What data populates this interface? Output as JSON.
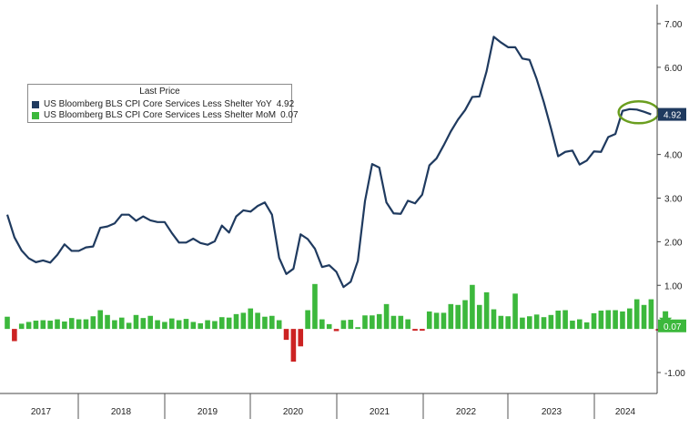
{
  "legend": {
    "header": "Last Price",
    "items": [
      {
        "label": "US Bloomberg BLS CPI Core Services Less Shelter YoY",
        "value": "4.92",
        "color": "#1f3a5f"
      },
      {
        "label": "US Bloomberg BLS CPI Core Services Less Shelter MoM",
        "value": "0.07",
        "color": "#3cb83c"
      }
    ]
  },
  "chart_data": {
    "type": "line",
    "grid": false,
    "legend_placement": "top-left",
    "ylim": [
      -1.25,
      7.4
    ],
    "y_ticks": [
      {
        "value": 7,
        "label": "7.00"
      },
      {
        "value": 6,
        "label": "6.00"
      },
      {
        "value": 5,
        "label": "5.00"
      },
      {
        "value": 4,
        "label": "4.00"
      },
      {
        "value": 3,
        "label": "3.00"
      },
      {
        "value": 2,
        "label": "2.00"
      },
      {
        "value": 1,
        "label": "1.00"
      },
      {
        "value": -1,
        "label": "-1.00"
      }
    ],
    "x_labels": [
      "2017",
      "2018",
      "2019",
      "2020",
      "2021",
      "2022",
      "2023",
      "2024"
    ],
    "last_value_labels": [
      {
        "series": 0,
        "value": 4.92,
        "label": "4.92",
        "color": "#1f3a5f"
      },
      {
        "series": 1,
        "value": 0.07,
        "label": "0.07",
        "color": "#3cb83c"
      }
    ],
    "series": [
      {
        "name": "US Bloomberg BLS CPI Core Services Less Shelter YoY",
        "type": "line",
        "color": "#1f3a5f",
        "values": [
          2.62,
          2.1,
          1.8,
          1.62,
          1.53,
          1.57,
          1.52,
          1.7,
          1.94,
          1.79,
          1.79,
          1.87,
          1.89,
          2.32,
          2.35,
          2.42,
          2.62,
          2.62,
          2.48,
          2.58,
          2.49,
          2.45,
          2.45,
          2.2,
          1.98,
          1.98,
          2.07,
          1.97,
          1.93,
          2.01,
          2.37,
          2.21,
          2.58,
          2.72,
          2.69,
          2.82,
          2.9,
          2.62,
          1.63,
          1.26,
          1.38,
          2.17,
          2.06,
          1.84,
          1.42,
          1.46,
          1.31,
          0.96,
          1.08,
          1.56,
          2.93,
          3.78,
          3.7,
          2.9,
          2.65,
          2.64,
          2.94,
          2.88,
          3.08,
          3.75,
          3.91,
          4.21,
          4.53,
          4.8,
          5.02,
          5.32,
          5.33,
          5.91,
          6.7,
          6.57,
          6.46,
          6.46,
          6.2,
          6.17,
          5.73,
          5.2,
          4.6,
          3.96,
          4.06,
          4.09,
          3.77,
          3.86,
          4.07,
          4.06,
          4.4,
          4.47,
          5.0,
          5.04,
          5.03,
          4.98,
          4.92
        ]
      },
      {
        "name": "US Bloomberg BLS CPI Core Services Less Shelter MoM",
        "type": "bar",
        "color": "#3cb83c",
        "negative_color": "#cc2222",
        "values": [
          0.28,
          -0.28,
          0.12,
          0.16,
          0.19,
          0.2,
          0.19,
          0.22,
          0.17,
          0.25,
          0.22,
          0.22,
          0.29,
          0.43,
          0.32,
          0.2,
          0.26,
          0.14,
          0.32,
          0.25,
          0.3,
          0.2,
          0.16,
          0.24,
          0.2,
          0.23,
          0.16,
          0.13,
          0.2,
          0.18,
          0.27,
          0.26,
          0.34,
          0.37,
          0.47,
          0.37,
          0.28,
          0.3,
          0.2,
          -0.25,
          -0.75,
          -0.4,
          0.43,
          1.03,
          0.22,
          0.11,
          -0.05,
          0.2,
          0.21,
          0.04,
          0.31,
          0.31,
          0.34,
          0.57,
          0.3,
          0.3,
          0.22,
          -0.04,
          -0.04,
          0.4,
          0.37,
          0.37,
          0.57,
          0.55,
          0.66,
          1.01,
          0.55,
          0.84,
          0.45,
          0.3,
          0.29,
          0.81,
          0.26,
          0.29,
          0.33,
          0.27,
          0.32,
          0.42,
          0.43,
          0.19,
          0.22,
          0.15,
          0.36,
          0.42,
          0.43,
          0.43,
          0.4,
          0.47,
          0.68,
          0.55,
          0.68,
          -0.04,
          0.07
        ]
      }
    ]
  }
}
